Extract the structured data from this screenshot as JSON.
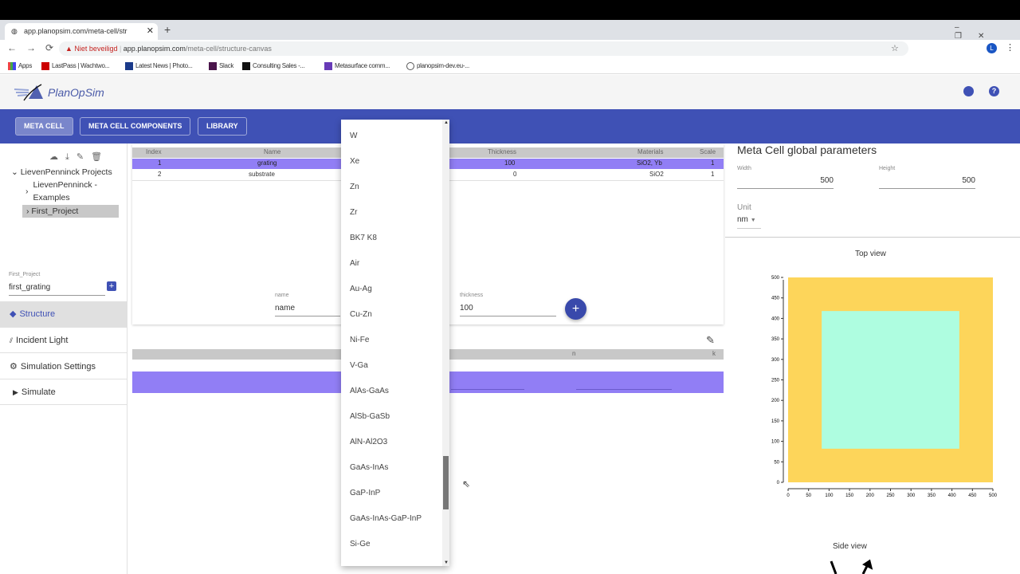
{
  "browser": {
    "tab_title": "app.planopsim.com/meta-cell/str",
    "security": "Niet beveiligd",
    "url_host": "app.planopsim.com",
    "url_path": "/meta-cell/structure-canvas",
    "bookmarks": [
      "Apps",
      "LastPass | Wachtwo...",
      "Latest News | Photo...",
      "Slack",
      "Consulting Sales -...",
      "Metasurface comm...",
      "planopsim-dev.eu-..."
    ],
    "profile_initial": "L"
  },
  "app": {
    "logo_text": "PlanOpSim"
  },
  "nav": {
    "tabs": [
      "META CELL",
      "META CELL COMPONENTS",
      "LIBRARY"
    ]
  },
  "sidebar": {
    "tree": {
      "root": "LievenPenninck Projects",
      "children": [
        "LievenPenninck - Examples",
        "First_Project"
      ]
    },
    "project_label": "First_Project",
    "project_value": "first_grating",
    "items": [
      "Structure",
      "Incident Light",
      "Simulation Settings",
      "Simulate"
    ]
  },
  "layers": {
    "headers": [
      "Index",
      "Name",
      "Thickness",
      "Materials",
      "Scale"
    ],
    "rows": [
      {
        "index": "1",
        "name": "grating",
        "thickness": "100",
        "materials": "SiO2, Yb",
        "scale": "1"
      },
      {
        "index": "2",
        "name": "substrate",
        "thickness": "0",
        "materials": "SiO2",
        "scale": "1"
      }
    ],
    "name_label": "name",
    "name_value": "name",
    "thickness_label": "thickness",
    "thickness_value": "100"
  },
  "materials_table": {
    "headers": [
      "n",
      "k"
    ]
  },
  "dropdown": {
    "options": [
      "W",
      "Xe",
      "Zn",
      "Zr",
      "BK7 K8",
      "Air",
      "Au-Ag",
      "Cu-Zn",
      "Ni-Fe",
      "V-Ga",
      "AlAs-GaAs",
      "AlSb-GaSb",
      "AlN-Al2O3",
      "GaAs-InAs",
      "GaP-InP",
      "GaAs-InAs-GaP-InP",
      "Si-Ge"
    ],
    "scroll_position": 0.78
  },
  "global": {
    "title": "Meta Cell global parameters",
    "width_label": "Width",
    "width_value": "500",
    "height_label": "Height",
    "height_value": "500",
    "unit_label": "Unit",
    "unit_value": "nm"
  },
  "top_view": {
    "title": "Top view"
  },
  "side_view": {
    "title": "Side view"
  },
  "chart_data": {
    "type": "rect",
    "title": "Top view",
    "xlim": [
      0,
      500
    ],
    "ylim": [
      0,
      500
    ],
    "xticks": [
      "0",
      "50",
      "100",
      "150",
      "200",
      "250",
      "300",
      "350",
      "400",
      "450",
      "500"
    ],
    "yticks": [
      "0",
      "50",
      "100",
      "150",
      "200",
      "250",
      "300",
      "350",
      "400",
      "450",
      "500"
    ],
    "shapes": [
      {
        "x": [
          0,
          500
        ],
        "y": [
          0,
          500
        ],
        "color": "#fdd55a"
      },
      {
        "x": [
          82,
          418
        ],
        "y": [
          82,
          418
        ],
        "color": "#aefde0"
      }
    ]
  },
  "colors": {
    "primary": "#3f51b5",
    "selected_row": "#917ef5",
    "accent_fab": "#3949ab"
  }
}
